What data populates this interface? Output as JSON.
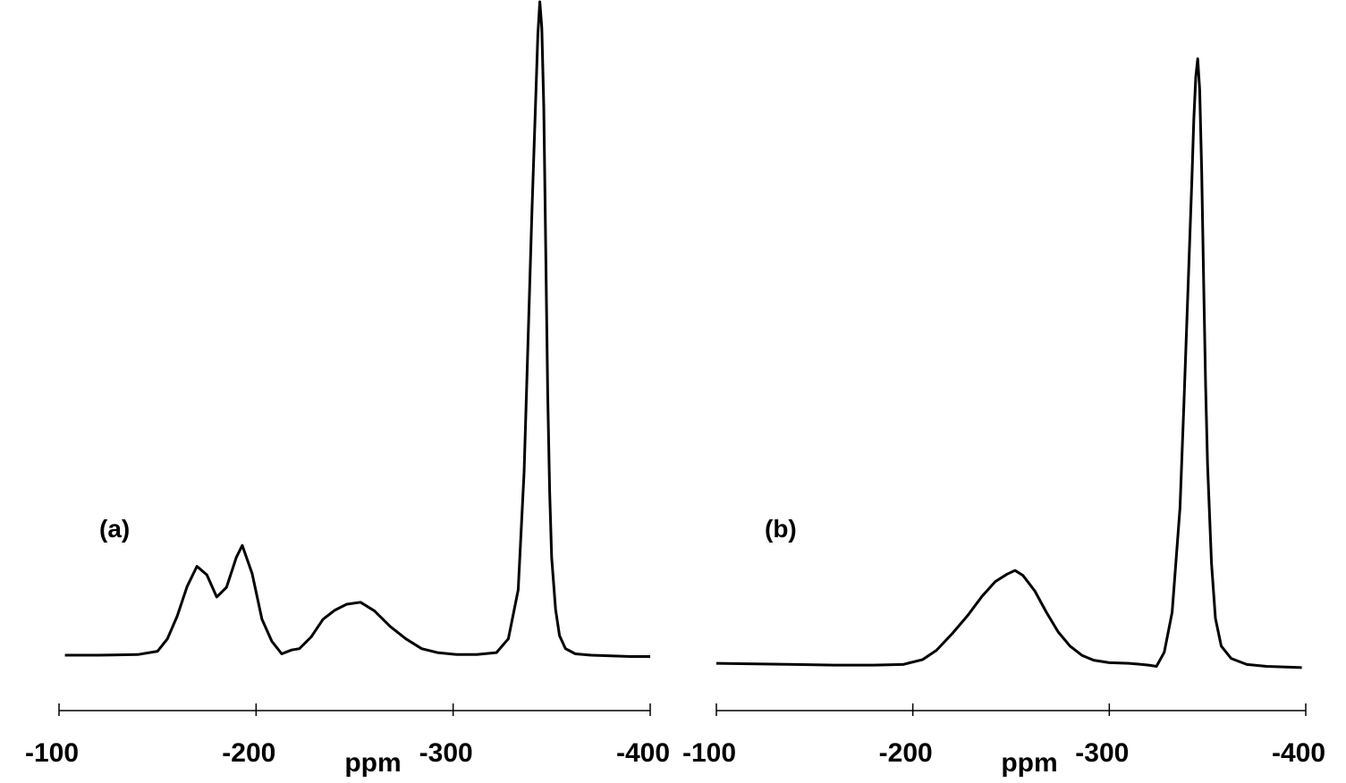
{
  "chart_data": [
    {
      "type": "line",
      "panel_label": "(a)",
      "xlabel": "ppm",
      "ylabel": "",
      "xlim": [
        -100,
        -400
      ],
      "ylim": [
        0,
        100
      ],
      "x_ticks": [
        -100,
        -200,
        -300,
        -400
      ],
      "x_tick_labels": [
        "-100",
        "-200",
        "-300",
        "-400"
      ],
      "grid": false,
      "series": [
        {
          "x": [
            -103,
            -120,
            -140,
            -150,
            -155,
            -160,
            -165,
            -170,
            -175,
            -180,
            -185,
            -190,
            -193,
            -198,
            -203,
            -208,
            -213,
            -218,
            -222,
            -228,
            -234,
            -240,
            -246,
            -253,
            -260,
            -268,
            -276,
            -284,
            -292,
            -302,
            -312,
            -322,
            -328,
            -333,
            -336,
            -338,
            -340,
            -342,
            -343,
            -344,
            -345,
            -346,
            -347,
            -348,
            -349,
            -350,
            -352,
            -354,
            -357,
            -362,
            -370,
            -380,
            -390,
            -400
          ],
          "y": [
            0.0,
            0.0,
            0.1,
            0.6,
            2.5,
            6.0,
            10.5,
            13.6,
            12.3,
            8.9,
            10.4,
            15.0,
            16.8,
            12.5,
            5.5,
            2.1,
            0.2,
            0.8,
            1.0,
            2.8,
            5.5,
            6.9,
            7.8,
            8.1,
            6.8,
            4.4,
            2.5,
            1.0,
            0.4,
            0.1,
            0.1,
            0.4,
            2.5,
            10.0,
            28.0,
            48.0,
            68.0,
            86.0,
            95.0,
            100.0,
            96.0,
            84.0,
            62.0,
            40.0,
            25.0,
            15.0,
            7.0,
            3.0,
            1.0,
            0.2,
            0.0,
            -0.1,
            -0.2,
            -0.2
          ]
        }
      ]
    },
    {
      "type": "line",
      "panel_label": "(b)",
      "xlabel": "ppm",
      "ylabel": "",
      "xlim": [
        -100,
        -400
      ],
      "ylim": [
        0,
        100
      ],
      "x_ticks": [
        -100,
        -200,
        -300,
        -400
      ],
      "x_tick_labels": [
        "-100",
        "-200",
        "-300",
        "-400"
      ],
      "grid": false,
      "series": [
        {
          "x": [
            -100,
            -120,
            -140,
            -160,
            -180,
            -195,
            -205,
            -212,
            -220,
            -228,
            -235,
            -242,
            -248,
            -252,
            -256,
            -262,
            -268,
            -274,
            -280,
            -286,
            -292,
            -300,
            -310,
            -320,
            -324,
            -328,
            -332,
            -336,
            -338,
            -340,
            -342,
            -343,
            -344,
            -345,
            -346,
            -347,
            -348,
            -349,
            -350,
            -352,
            -354,
            -357,
            -362,
            -370,
            -380,
            -390,
            -398
          ],
          "y": [
            -0.3,
            -0.4,
            -0.5,
            -0.6,
            -0.6,
            -0.5,
            0.3,
            1.8,
            4.5,
            7.5,
            10.5,
            13.0,
            14.2,
            14.8,
            14.0,
            11.5,
            8.0,
            4.8,
            2.5,
            1.0,
            0.2,
            -0.2,
            -0.3,
            -0.6,
            -0.8,
            1.5,
            8.0,
            25.0,
            42.0,
            60.0,
            78.0,
            88.0,
            95.0,
            98.0,
            93.0,
            80.0,
            62.0,
            45.0,
            32.0,
            16.0,
            7.0,
            2.5,
            0.5,
            -0.5,
            -0.8,
            -0.9,
            -1.0
          ]
        }
      ]
    }
  ]
}
